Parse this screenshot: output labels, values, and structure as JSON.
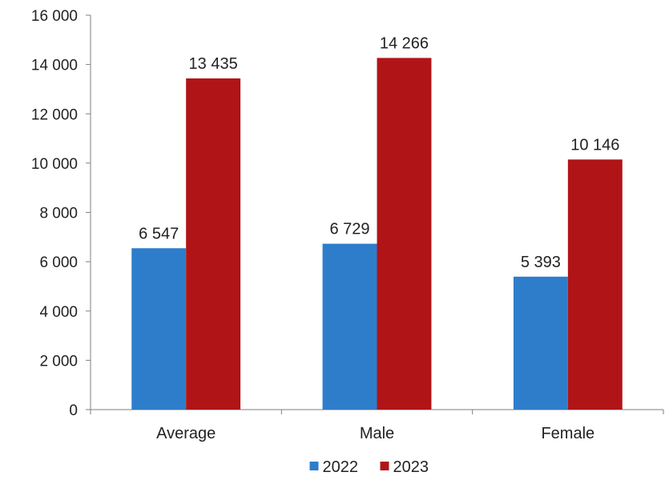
{
  "chart_data": {
    "type": "bar",
    "categories": [
      "Average",
      "Male",
      "Female"
    ],
    "series": [
      {
        "name": "2022",
        "values": [
          6547,
          6729,
          5393
        ],
        "labels": [
          "6 547",
          "6 729",
          "5 393"
        ],
        "color": "#2e7dcb"
      },
      {
        "name": "2023",
        "values": [
          13435,
          14266,
          10146
        ],
        "labels": [
          "13 435",
          "14 266",
          "10 146"
        ],
        "color": "#b01416"
      }
    ],
    "ylim": [
      0,
      16000
    ],
    "yticks": [
      0,
      2000,
      4000,
      6000,
      8000,
      10000,
      12000,
      14000,
      16000
    ],
    "ytick_labels": [
      "0",
      "2 000",
      "4 000",
      "6 000",
      "8 000",
      "10 000",
      "12 000",
      "14 000",
      "16 000"
    ],
    "title": "",
    "xlabel": "",
    "ylabel": "",
    "grid": false,
    "legend_position": "bottom-center"
  }
}
